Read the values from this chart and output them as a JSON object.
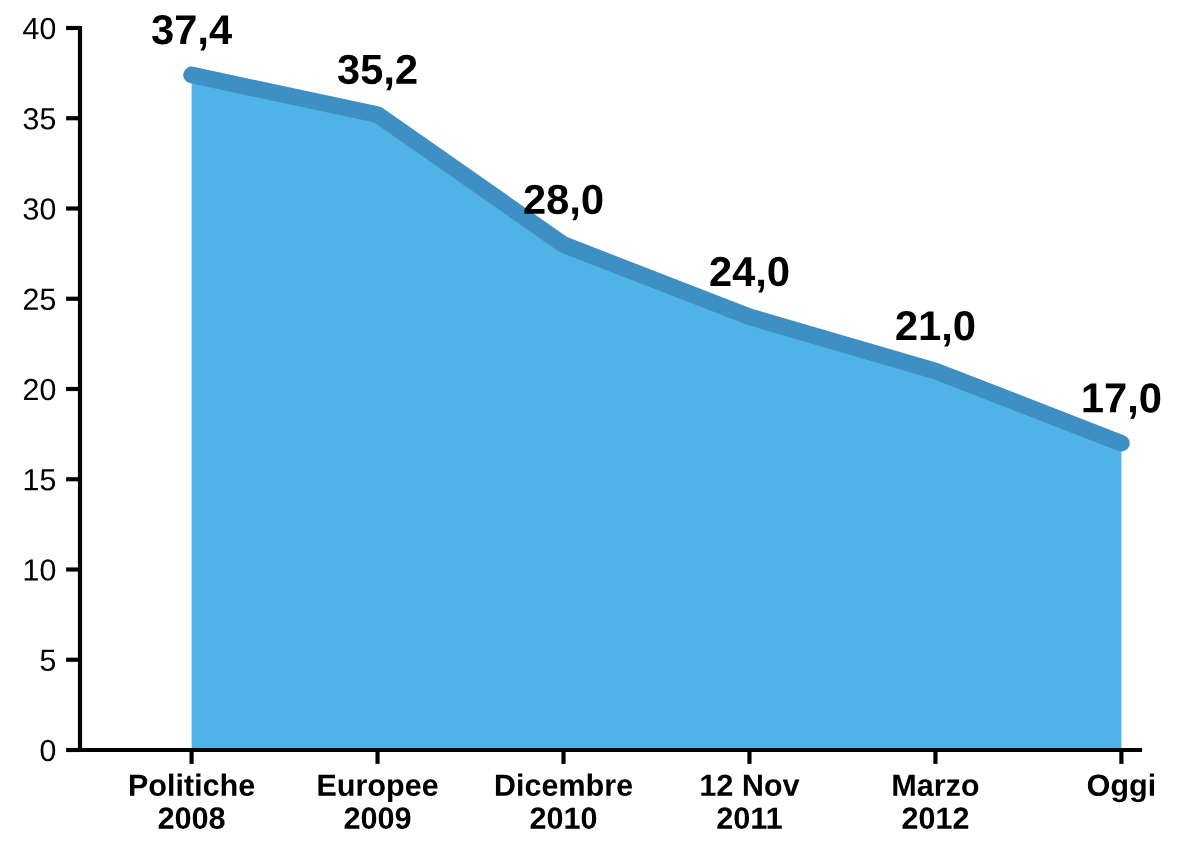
{
  "chart_data": {
    "type": "area",
    "categories": [
      "Politiche\n2008",
      "Europee\n2009",
      "Dicembre\n2010",
      "12 Nov\n2011",
      "Marzo\n2012",
      "Oggi"
    ],
    "series": [
      {
        "color": "#4fb3e8",
        "values": [
          37.4,
          35.2,
          28.0,
          24.0,
          21.0,
          17.0
        ],
        "value_labels": [
          "37,4",
          "35,2",
          "28,0",
          "24,0",
          "21,0",
          "17,0"
        ]
      }
    ],
    "ylim": [
      0,
      40
    ],
    "yticks": [
      0,
      5,
      10,
      15,
      20,
      25,
      30,
      35,
      40
    ],
    "grid": false,
    "legend": false
  }
}
